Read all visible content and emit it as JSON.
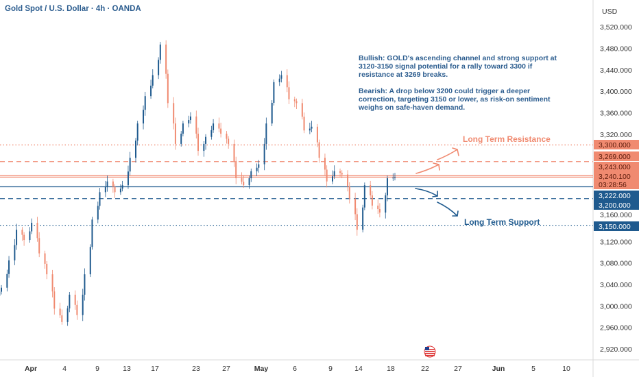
{
  "header": {
    "title": "Gold Spot / U.S. Dollar · 4h · OANDA"
  },
  "notes": {
    "bullish": "Bullish: GOLD's ascending channel and strong support at 3120-3150 signal potential for a rally toward 3300 if resistance at 3269 breaks.",
    "bearish": "Bearish: A drop below 3200 could trigger a deeper correction, targeting 3150 or lower, as risk-on sentiment weighs on safe-haven demand."
  },
  "chart_data": {
    "type": "candlestick",
    "title": "Gold Spot / U.S. Dollar · 4h · OANDA",
    "currency_label": "USD",
    "ylim": [
      2920,
      3540
    ],
    "y_ticks": [
      "3,520.000",
      "3,480.000",
      "3,440.000",
      "3,400.000",
      "3,360.000",
      "3,320.000",
      "3,160.000",
      "3,120.000",
      "3,080.000",
      "3,040.000",
      "3,000.000",
      "2,960.000",
      "2,920.000"
    ],
    "y_tick_values": [
      3520,
      3480,
      3440,
      3400,
      3360,
      3320,
      3160,
      3120,
      3080,
      3040,
      3000,
      2960,
      2920
    ],
    "x_ticks": [
      "Apr",
      "4",
      "9",
      "13",
      "17",
      "23",
      "27",
      "May",
      "6",
      "9",
      "14",
      "18",
      "22",
      "27",
      "Jun",
      "5",
      "10"
    ],
    "closes": [
      3034,
      3085,
      3142,
      3123,
      3155,
      3098,
      3059,
      2995,
      2970,
      3021,
      2983,
      3059,
      3161,
      3212,
      3232,
      3212,
      3225,
      3276,
      3340,
      3391,
      3430,
      3487,
      3378,
      3302,
      3340,
      3353,
      3289,
      3315,
      3340,
      3321,
      3302,
      3238,
      3225,
      3251,
      3264,
      3340,
      3417,
      3430,
      3385,
      3378,
      3327,
      3334,
      3276,
      3232,
      3251,
      3245,
      3200,
      3142,
      3225,
      3187,
      3174,
      3238,
      3240
    ],
    "levels": [
      {
        "value": 3300,
        "label": "3,300.000",
        "style": "dotted",
        "color": "#f08a70",
        "name": "Long Term Resistance"
      },
      {
        "value": 3269,
        "label": "3,269.000",
        "style": "dashed",
        "color": "#f08a70"
      },
      {
        "value": 3243,
        "label": "3,243.000",
        "style": "solid",
        "color": "#f08a70"
      },
      {
        "value": 3240.1,
        "label": "3,240.100",
        "style": "solid",
        "color": "#f08a70",
        "countdown": "03:28:56"
      },
      {
        "value": 3222,
        "label": "3,222.000",
        "style": "solid",
        "color": "#1f5a8e"
      },
      {
        "value": 3200,
        "label": "3,200.000",
        "style": "dashed",
        "color": "#1f5a8e"
      },
      {
        "value": 3150,
        "label": "3,150.000",
        "style": "dotted",
        "color": "#1f5a8e",
        "name": "Long Term Support"
      }
    ],
    "colors": {
      "up": "#1f5a8e",
      "down": "#f08a70",
      "text": "#2c5d8f"
    }
  }
}
